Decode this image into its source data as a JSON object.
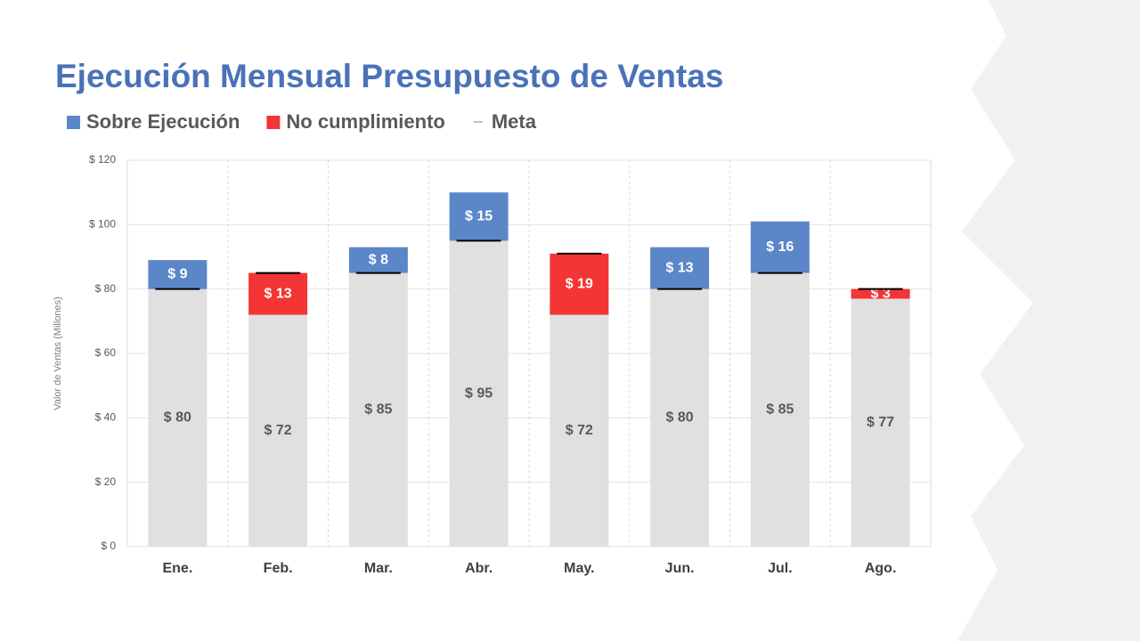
{
  "chart_data": {
    "type": "bar",
    "stacked": true,
    "title": "Ejecución Mensual Presupuesto de Ventas",
    "y_label": "Valor de Ventas (Millones)",
    "categories": [
      "Ene.",
      "Feb.",
      "Mar.",
      "Abr.",
      "May.",
      "Jun.",
      "Jul.",
      "Ago."
    ],
    "series": [
      {
        "color": "#e0e0e0",
        "values": [
          80,
          72,
          85,
          95,
          72,
          80,
          85,
          77
        ],
        "value_labels": [
          "$ 80",
          "$ 72",
          "$ 85",
          "$ 95",
          "$ 72",
          "$ 80",
          "$ 85",
          "$ 77"
        ]
      },
      {
        "name": "Sobre Ejecución",
        "color": "#5b87c9",
        "values": [
          9,
          null,
          8,
          15,
          null,
          13,
          16,
          null
        ],
        "value_labels": [
          "$ 9",
          null,
          "$ 8",
          "$ 15",
          null,
          "$ 13",
          "$ 16",
          null
        ]
      },
      {
        "name": "No cumplimiento",
        "color": "#f33535",
        "values": [
          null,
          13,
          null,
          null,
          19,
          null,
          null,
          3
        ],
        "value_labels": [
          null,
          "$ 13",
          null,
          null,
          "$ 19",
          null,
          null,
          "$ 3"
        ]
      },
      {
        "name": "Meta",
        "type": "marker",
        "color": "#000000",
        "values": [
          80,
          85,
          85,
          95,
          91,
          80,
          85,
          80
        ]
      }
    ],
    "ylim": [
      0,
      120
    ],
    "yticks": [
      {
        "value": 0,
        "label": "$ 0"
      },
      {
        "value": 20,
        "label": "$ 20"
      },
      {
        "value": 40,
        "label": "$ 40"
      },
      {
        "value": 60,
        "label": "$ 60"
      },
      {
        "value": 80,
        "label": "$ 80"
      },
      {
        "value": 100,
        "label": "$ 100"
      },
      {
        "value": 120,
        "label": "$ 120"
      }
    ],
    "grid": true
  }
}
